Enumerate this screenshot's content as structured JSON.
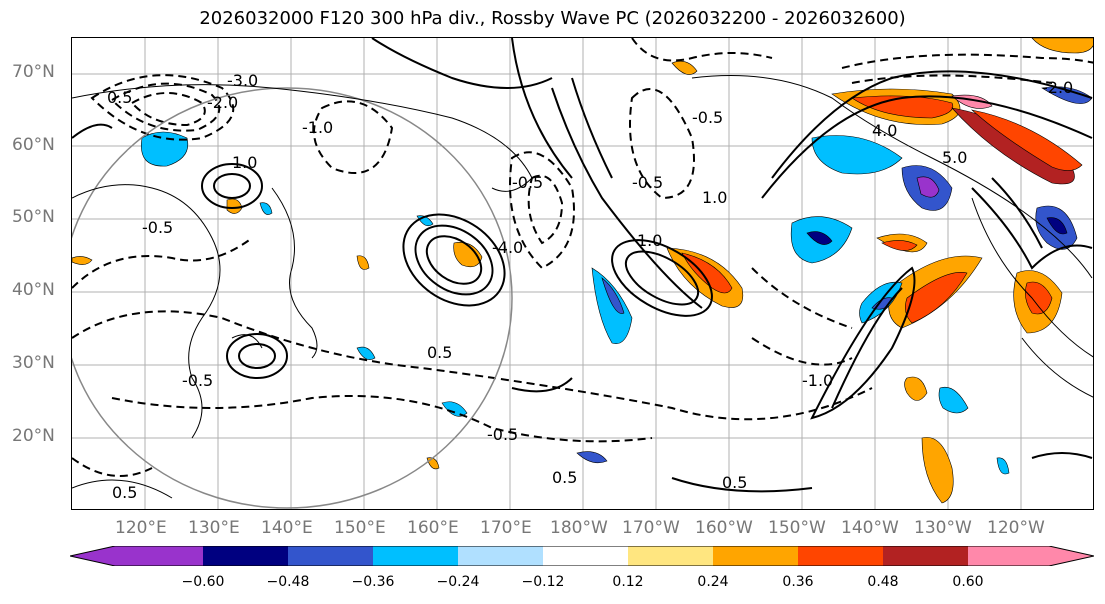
{
  "title": "2026032000 F120 300 hPa div., Rossby Wave PC (2026032200 - 2026032600)",
  "map": {
    "lat_labels": [
      "70°N",
      "60°N",
      "50°N",
      "40°N",
      "30°N",
      "20°N"
    ],
    "lon_labels": [
      "120°E",
      "130°E",
      "140°E",
      "150°E",
      "160°E",
      "170°E",
      "180°W",
      "170°W",
      "160°W",
      "150°W",
      "140°W",
      "130°W",
      "120°W"
    ],
    "contour_labels": [
      "-3.0",
      "-2.0",
      "0.5",
      "1.0",
      "-0.5",
      "-1.0",
      "-0.5",
      "-4.0",
      "5.0",
      "4.0",
      "-2.0",
      "0.5",
      "-0.5",
      "0.5",
      "0.5",
      "0.5",
      "-1.0",
      "-0.5",
      "-0.5",
      "1.0",
      "1.0",
      "-0.5"
    ],
    "colors": {
      "grid": "#b0b0b0",
      "coast": "#000000",
      "circle": "#888888"
    }
  },
  "colorbar": {
    "ticks": [
      "−0.60",
      "−0.48",
      "−0.36",
      "−0.24",
      "−0.12",
      "0.12",
      "0.24",
      "0.36",
      "0.48",
      "0.60"
    ],
    "colors": [
      "#9933cc",
      "#000080",
      "#3355cc",
      "#00bfff",
      "#b0e0ff",
      "#ffffff",
      "#ffe680",
      "#ffa500",
      "#ff4500",
      "#b22222",
      "#ff88aa"
    ]
  }
}
